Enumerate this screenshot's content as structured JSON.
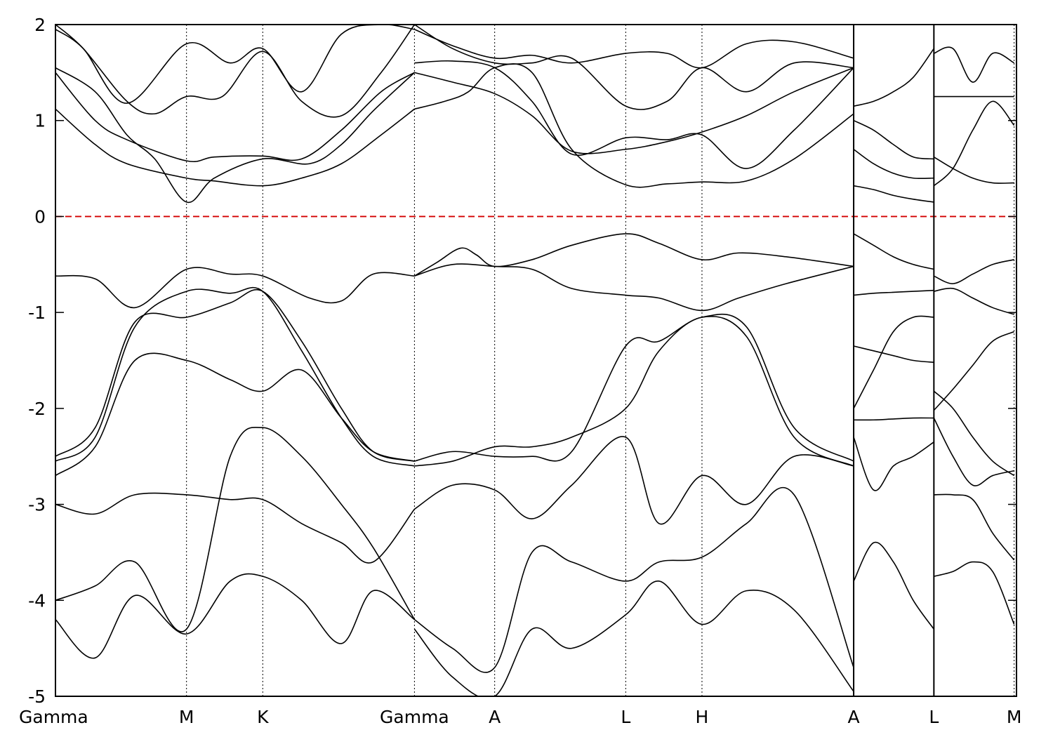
{
  "chart_data": {
    "type": "line",
    "title": "",
    "xlabel": "",
    "ylabel": "",
    "ylim": [
      -5,
      2
    ],
    "y_ticks": [
      {
        "value": -5,
        "label": "-5"
      },
      {
        "value": -4,
        "label": "-4"
      },
      {
        "value": -3,
        "label": "-3"
      },
      {
        "value": -2,
        "label": "-2"
      },
      {
        "value": -1,
        "label": "-1"
      },
      {
        "value": 0,
        "label": "0"
      },
      {
        "value": 1,
        "label": "1"
      },
      {
        "value": 2,
        "label": "2"
      }
    ],
    "xlim": [
      0,
      12.1
    ],
    "kpoints": [
      {
        "label": "Gamma",
        "x": 0.0
      },
      {
        "label": "M",
        "x": 1.65
      },
      {
        "label": "K",
        "x": 2.61
      },
      {
        "label": "Gamma",
        "x": 4.52
      },
      {
        "label": "A",
        "x": 5.53
      },
      {
        "label": "L",
        "x": 7.18
      },
      {
        "label": "H",
        "x": 8.14
      },
      {
        "label": "A",
        "x": 10.05
      },
      {
        "label": "L",
        "x": 11.06
      },
      {
        "label": "M",
        "x": 12.07
      }
    ],
    "segment_breaks": [
      {
        "x": 10.05,
        "note": "A|L"
      },
      {
        "x": 11.06,
        "note": "M|K"
      }
    ],
    "fermi_level": {
      "value": 0,
      "color": "#d40000",
      "style": "dashed"
    },
    "series": [
      {
        "x": [
          0,
          0.5,
          0.9,
          1.65,
          2.0,
          2.61,
          3.1,
          3.6,
          4.1,
          4.52
        ],
        "y": [
          1.12,
          0.75,
          0.55,
          0.4,
          0.37,
          0.32,
          0.4,
          0.55,
          0.85,
          1.12
        ]
      },
      {
        "x": [
          0,
          0.5,
          0.9,
          1.65,
          2.0,
          2.61,
          3.1,
          3.6,
          4.1,
          4.52
        ],
        "y": [
          1.5,
          1.0,
          0.8,
          0.58,
          0.62,
          0.63,
          0.6,
          0.9,
          1.3,
          1.5
        ]
      },
      {
        "x": [
          0,
          0.5,
          0.9,
          1.25,
          1.65,
          2.0,
          2.61,
          3.2,
          3.6,
          4.0,
          4.52
        ],
        "y": [
          1.55,
          1.3,
          0.85,
          0.6,
          0.15,
          0.4,
          0.6,
          0.55,
          0.75,
          1.1,
          1.5
        ]
      },
      {
        "x": [
          0,
          0.35,
          0.9,
          1.25,
          1.65,
          2.1,
          2.61,
          3.1,
          3.6,
          4.1,
          4.52
        ],
        "y": [
          2.0,
          1.75,
          1.2,
          1.07,
          1.25,
          1.25,
          1.72,
          1.2,
          1.05,
          1.5,
          2.0
        ]
      },
      {
        "x": [
          0,
          0.35,
          0.9,
          1.65,
          2.2,
          2.61,
          3.1,
          3.6,
          4.1,
          4.52
        ],
        "y": [
          1.95,
          1.75,
          1.18,
          1.8,
          1.6,
          1.75,
          1.3,
          1.9,
          2.0,
          1.95
        ]
      },
      {
        "x": [
          4.52,
          4.9,
          5.2,
          5.53,
          6.0,
          6.5,
          7.18,
          7.7,
          8.14,
          8.7,
          9.3,
          10.05
        ],
        "y": [
          1.12,
          1.2,
          1.3,
          1.55,
          1.5,
          0.7,
          0.33,
          0.34,
          0.36,
          0.37,
          0.6,
          1.07
        ]
      },
      {
        "x": [
          4.52,
          5.0,
          5.53,
          6.0,
          6.5,
          7.18,
          7.7,
          8.14,
          8.7,
          9.3,
          10.05
        ],
        "y": [
          1.5,
          1.4,
          1.28,
          1.05,
          0.68,
          0.7,
          0.78,
          0.88,
          1.05,
          1.3,
          1.55
        ]
      },
      {
        "x": [
          4.52,
          5.0,
          5.53,
          6.0,
          6.5,
          7.18,
          7.7,
          8.14,
          8.7,
          9.3,
          10.05
        ],
        "y": [
          1.6,
          1.62,
          1.55,
          1.2,
          0.65,
          0.82,
          0.8,
          0.85,
          0.5,
          0.9,
          1.55
        ]
      },
      {
        "x": [
          4.52,
          5.0,
          5.53,
          6.0,
          6.5,
          7.18,
          7.7,
          8.14,
          8.7,
          9.3,
          10.05
        ],
        "y": [
          2.0,
          1.75,
          1.6,
          1.6,
          1.65,
          1.15,
          1.2,
          1.55,
          1.3,
          1.6,
          1.55
        ]
      },
      {
        "x": [
          4.52,
          5.0,
          5.53,
          6.0,
          6.5,
          7.18,
          7.7,
          8.14,
          8.7,
          9.3,
          10.05
        ],
        "y": [
          1.95,
          1.78,
          1.65,
          1.68,
          1.6,
          1.7,
          1.7,
          1.55,
          1.8,
          1.82,
          1.65
        ]
      },
      {
        "x": [
          0,
          0.5,
          1.0,
          1.65,
          2.2,
          2.61,
          3.2,
          3.6,
          4.0,
          4.52
        ],
        "y": [
          -0.62,
          -0.65,
          -0.95,
          -0.55,
          -0.6,
          -0.62,
          -0.85,
          -0.88,
          -0.6,
          -0.62
        ]
      },
      {
        "x": [
          4.52,
          4.8,
          5.1,
          5.3,
          5.53,
          6.0,
          6.5,
          7.18,
          7.6,
          8.14,
          8.6,
          9.2,
          10.05
        ],
        "y": [
          -0.62,
          -0.48,
          -0.33,
          -0.4,
          -0.52,
          -0.45,
          -0.3,
          -0.18,
          -0.28,
          -0.45,
          -0.38,
          -0.42,
          -0.52
        ]
      },
      {
        "x": [
          4.52,
          5.0,
          5.53,
          6.0,
          6.5,
          7.18,
          7.6,
          8.14,
          8.6,
          9.2,
          10.05
        ],
        "y": [
          -0.62,
          -0.5,
          -0.52,
          -0.55,
          -0.75,
          -0.82,
          -0.85,
          -0.98,
          -0.85,
          -0.7,
          -0.52
        ]
      },
      {
        "x": [
          0,
          0.5,
          1.0,
          1.65,
          2.2,
          2.61,
          3.1,
          3.6,
          4.0,
          4.52
        ],
        "y": [
          -2.5,
          -2.2,
          -1.1,
          -1.05,
          -0.9,
          -0.78,
          -1.3,
          -2.0,
          -2.45,
          -2.55
        ]
      },
      {
        "x": [
          0,
          0.5,
          1.0,
          1.65,
          2.2,
          2.61,
          3.1,
          3.6,
          4.0,
          4.52
        ],
        "y": [
          -2.55,
          -2.3,
          -1.15,
          -0.78,
          -0.8,
          -0.78,
          -1.4,
          -2.1,
          -2.5,
          -2.6
        ]
      },
      {
        "x": [
          0,
          0.5,
          1.0,
          1.65,
          2.2,
          2.61,
          3.1,
          3.6,
          4.0,
          4.52
        ],
        "y": [
          -2.7,
          -2.4,
          -1.5,
          -1.5,
          -1.7,
          -1.82,
          -1.6,
          -2.1,
          -2.45,
          -2.55
        ]
      },
      {
        "x": [
          4.52,
          5.0,
          5.53,
          6.0,
          6.5,
          7.18,
          7.6,
          8.14,
          8.7,
          9.3,
          10.05
        ],
        "y": [
          -2.55,
          -2.45,
          -2.5,
          -2.5,
          -2.45,
          -1.35,
          -1.3,
          -1.05,
          -1.15,
          -2.2,
          -2.55
        ]
      },
      {
        "x": [
          4.52,
          5.0,
          5.53,
          6.0,
          6.5,
          7.18,
          7.6,
          8.14,
          8.7,
          9.3,
          10.05
        ],
        "y": [
          -2.6,
          -2.55,
          -2.4,
          -2.4,
          -2.3,
          -2.0,
          -1.4,
          -1.05,
          -1.25,
          -2.3,
          -2.6
        ]
      },
      {
        "x": [
          0,
          0.5,
          1.0,
          1.65,
          2.2,
          2.61,
          3.1,
          3.6,
          4.0,
          4.52
        ],
        "y": [
          -3.0,
          -3.1,
          -2.9,
          -2.9,
          -2.95,
          -2.95,
          -3.2,
          -3.4,
          -3.6,
          -3.05
        ]
      },
      {
        "x": [
          0,
          0.5,
          1.0,
          1.65,
          2.2,
          2.61,
          3.1,
          3.6,
          4.0,
          4.52
        ],
        "y": [
          -4.0,
          -3.85,
          -3.6,
          -4.3,
          -2.5,
          -2.2,
          -2.5,
          -3.0,
          -3.45,
          -4.2
        ]
      },
      {
        "x": [
          0,
          0.5,
          1.0,
          1.65,
          2.2,
          2.61,
          3.1,
          3.6,
          4.0,
          4.52
        ],
        "y": [
          -4.2,
          -4.6,
          -3.95,
          -4.35,
          -3.8,
          -3.75,
          -4.0,
          -4.45,
          -3.9,
          -4.2
        ]
      },
      {
        "x": [
          4.52,
          5.0,
          5.53,
          6.0,
          6.5,
          7.18,
          7.6,
          8.14,
          8.7,
          9.3,
          10.05
        ],
        "y": [
          -3.05,
          -2.8,
          -2.85,
          -3.15,
          -2.8,
          -2.3,
          -3.2,
          -2.7,
          -3.0,
          -2.5,
          -2.6
        ]
      },
      {
        "x": [
          4.52,
          5.0,
          5.53,
          6.0,
          6.5,
          7.18,
          7.6,
          8.14,
          8.7,
          9.3,
          10.05
        ],
        "y": [
          -4.2,
          -4.5,
          -4.7,
          -3.5,
          -3.6,
          -3.8,
          -3.6,
          -3.55,
          -3.2,
          -2.9,
          -4.7
        ]
      },
      {
        "x": [
          4.52,
          5.0,
          5.53,
          6.0,
          6.5,
          7.18,
          7.6,
          8.14,
          8.7,
          9.3,
          10.05
        ],
        "y": [
          -4.3,
          -4.8,
          -5.0,
          -4.3,
          -4.5,
          -4.15,
          -3.8,
          -4.25,
          -3.9,
          -4.1,
          -4.95
        ]
      },
      {
        "x": [
          10.05,
          10.3,
          10.55,
          10.8,
          11.06
        ],
        "y": [
          -0.18,
          -0.3,
          -0.42,
          -0.5,
          -0.55
        ]
      },
      {
        "x": [
          10.05,
          10.3,
          10.55,
          10.8,
          11.06
        ],
        "y": [
          -0.82,
          -0.8,
          -0.79,
          -0.78,
          -0.77
        ]
      },
      {
        "x": [
          10.05,
          10.3,
          10.55,
          10.8,
          11.06
        ],
        "y": [
          0.32,
          0.28,
          0.22,
          0.18,
          0.15
        ]
      },
      {
        "x": [
          10.05,
          10.3,
          10.55,
          10.8,
          11.06
        ],
        "y": [
          0.7,
          0.55,
          0.45,
          0.4,
          0.4
        ]
      },
      {
        "x": [
          10.05,
          10.3,
          10.55,
          10.8,
          11.06
        ],
        "y": [
          1.0,
          0.9,
          0.75,
          0.62,
          0.6
        ]
      },
      {
        "x": [
          10.05,
          10.3,
          10.55,
          10.8,
          11.06
        ],
        "y": [
          1.15,
          1.2,
          1.3,
          1.45,
          1.75
        ]
      },
      {
        "x": [
          10.05,
          10.3,
          10.55,
          10.8,
          11.06
        ],
        "y": [
          -1.35,
          -1.4,
          -1.45,
          -1.5,
          -1.52
        ]
      },
      {
        "x": [
          10.05,
          10.3,
          10.55,
          10.8,
          11.06
        ],
        "y": [
          -2.0,
          -1.6,
          -1.2,
          -1.05,
          -1.05
        ]
      },
      {
        "x": [
          10.05,
          10.3,
          10.55,
          10.8,
          11.06
        ],
        "y": [
          -2.12,
          -2.12,
          -2.11,
          -2.1,
          -2.1
        ]
      },
      {
        "x": [
          10.05,
          10.3,
          10.55,
          10.8,
          11.06
        ],
        "y": [
          -2.3,
          -2.85,
          -2.6,
          -2.5,
          -2.35
        ]
      },
      {
        "x": [
          10.05,
          10.3,
          10.55,
          10.8,
          11.06
        ],
        "y": [
          -3.8,
          -3.4,
          -3.6,
          -4.0,
          -4.3
        ]
      },
      {
        "x": [
          11.06,
          11.3,
          11.55,
          11.8,
          12.07
        ],
        "y": [
          0.62,
          0.5,
          0.4,
          0.35,
          0.35
        ]
      },
      {
        "x": [
          11.06,
          11.3,
          11.55,
          11.8,
          12.07
        ],
        "y": [
          0.32,
          0.5,
          0.9,
          1.2,
          0.95
        ]
      },
      {
        "x": [
          11.06,
          11.3,
          11.55,
          11.8,
          12.07
        ],
        "y": [
          1.7,
          1.75,
          1.4,
          1.7,
          1.6
        ]
      },
      {
        "x": [
          11.06,
          11.3,
          11.55,
          11.8,
          12.07
        ],
        "y": [
          1.25,
          1.25,
          1.25,
          1.25,
          1.25
        ]
      },
      {
        "x": [
          11.06,
          11.3,
          11.55,
          11.8,
          12.07
        ],
        "y": [
          -0.62,
          -0.7,
          -0.6,
          -0.5,
          -0.45
        ]
      },
      {
        "x": [
          11.06,
          11.3,
          11.55,
          11.8,
          12.07
        ],
        "y": [
          -0.78,
          -0.75,
          -0.85,
          -0.95,
          -1.02
        ]
      },
      {
        "x": [
          11.06,
          11.3,
          11.55,
          11.8,
          12.07
        ],
        "y": [
          -2.02,
          -1.8,
          -1.55,
          -1.3,
          -1.2
        ]
      },
      {
        "x": [
          11.06,
          11.3,
          11.55,
          11.8,
          12.07
        ],
        "y": [
          -1.82,
          -2.0,
          -2.3,
          -2.55,
          -2.7
        ]
      },
      {
        "x": [
          11.06,
          11.3,
          11.55,
          11.8,
          12.07
        ],
        "y": [
          -2.1,
          -2.5,
          -2.8,
          -2.7,
          -2.65
        ]
      },
      {
        "x": [
          11.06,
          11.3,
          11.55,
          11.8,
          12.07
        ],
        "y": [
          -2.9,
          -2.9,
          -2.95,
          -3.3,
          -3.58
        ]
      },
      {
        "x": [
          11.06,
          11.3,
          11.55,
          11.8,
          12.07
        ],
        "y": [
          -3.75,
          -3.7,
          -3.6,
          -3.7,
          -4.25
        ]
      }
    ]
  }
}
